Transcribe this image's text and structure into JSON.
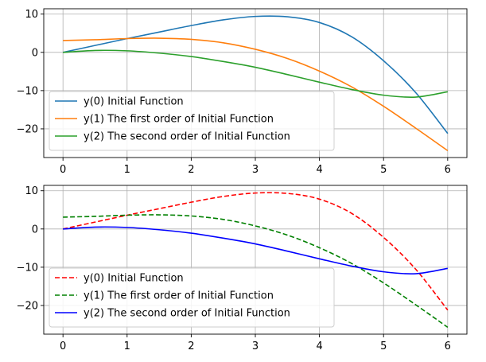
{
  "chart_data": [
    {
      "type": "line",
      "grid": true,
      "legend_position": "lower-left",
      "xlim": [
        -0.3,
        6.3
      ],
      "ylim": [
        -27.5,
        11.4
      ],
      "xticks": [
        0,
        1,
        2,
        3,
        4,
        5,
        6
      ],
      "yticks": [
        10,
        0,
        -10,
        -20
      ],
      "ytick_labels": [
        "10",
        "0",
        "−10",
        "−20"
      ],
      "series": [
        {
          "name": "y(0) Initial Function",
          "color": "#1f77b4",
          "style": "solid",
          "x": [
            0,
            0.5,
            1,
            1.5,
            2,
            2.5,
            3,
            3.5,
            4,
            4.5,
            5,
            5.5,
            6
          ],
          "y": [
            0,
            1.8,
            3.6,
            5.3,
            7.0,
            8.5,
            9.4,
            9.3,
            7.8,
            4.1,
            -2.2,
            -10.5,
            -21.2
          ]
        },
        {
          "name": "y(1) The first order of Initial Function",
          "color": "#ff7f0e",
          "style": "solid",
          "x": [
            0,
            0.5,
            1,
            1.5,
            2,
            2.5,
            3,
            3.5,
            4,
            4.5,
            5,
            5.5,
            6
          ],
          "y": [
            3.1,
            3.3,
            3.6,
            3.7,
            3.4,
            2.5,
            0.8,
            -1.6,
            -4.9,
            -9.0,
            -14.1,
            -19.8,
            -25.7
          ]
        },
        {
          "name": "y(2) The second order of Initial Function",
          "color": "#2ca02c",
          "style": "solid",
          "x": [
            0,
            0.5,
            1,
            1.5,
            2,
            2.5,
            3,
            3.5,
            4,
            4.5,
            5,
            5.5,
            6
          ],
          "y": [
            0,
            0.5,
            0.4,
            -0.2,
            -1.1,
            -2.4,
            -3.9,
            -5.8,
            -7.8,
            -9.7,
            -11.2,
            -11.7,
            -10.3
          ]
        }
      ]
    },
    {
      "type": "line",
      "grid": true,
      "legend_position": "lower-left",
      "xlim": [
        -0.3,
        6.3
      ],
      "ylim": [
        -27.5,
        11.4
      ],
      "xticks": [
        0,
        1,
        2,
        3,
        4,
        5,
        6
      ],
      "yticks": [
        10,
        0,
        -10,
        -20
      ],
      "ytick_labels": [
        "10",
        "0",
        "−10",
        "−20"
      ],
      "series": [
        {
          "name": "y(0) Initial Function",
          "color": "#ff0000",
          "style": "dashed",
          "x": [
            0,
            0.5,
            1,
            1.5,
            2,
            2.5,
            3,
            3.5,
            4,
            4.5,
            5,
            5.5,
            6
          ],
          "y": [
            0,
            1.8,
            3.6,
            5.3,
            7.0,
            8.5,
            9.4,
            9.3,
            7.8,
            4.1,
            -2.2,
            -10.5,
            -21.2
          ]
        },
        {
          "name": "y(1) The first order of Initial Function",
          "color": "#008000",
          "style": "dashed",
          "x": [
            0,
            0.5,
            1,
            1.5,
            2,
            2.5,
            3,
            3.5,
            4,
            4.5,
            5,
            5.5,
            6
          ],
          "y": [
            3.1,
            3.3,
            3.6,
            3.7,
            3.4,
            2.5,
            0.8,
            -1.6,
            -4.9,
            -9.0,
            -14.1,
            -19.8,
            -25.7
          ]
        },
        {
          "name": "y(2) The second order of Initial Function",
          "color": "#0000ff",
          "style": "solid",
          "x": [
            0,
            0.5,
            1,
            1.5,
            2,
            2.5,
            3,
            3.5,
            4,
            4.5,
            5,
            5.5,
            6
          ],
          "y": [
            0,
            0.5,
            0.4,
            -0.2,
            -1.1,
            -2.4,
            -3.9,
            -5.8,
            -7.8,
            -9.7,
            -11.2,
            -11.7,
            -10.3
          ]
        }
      ]
    }
  ]
}
